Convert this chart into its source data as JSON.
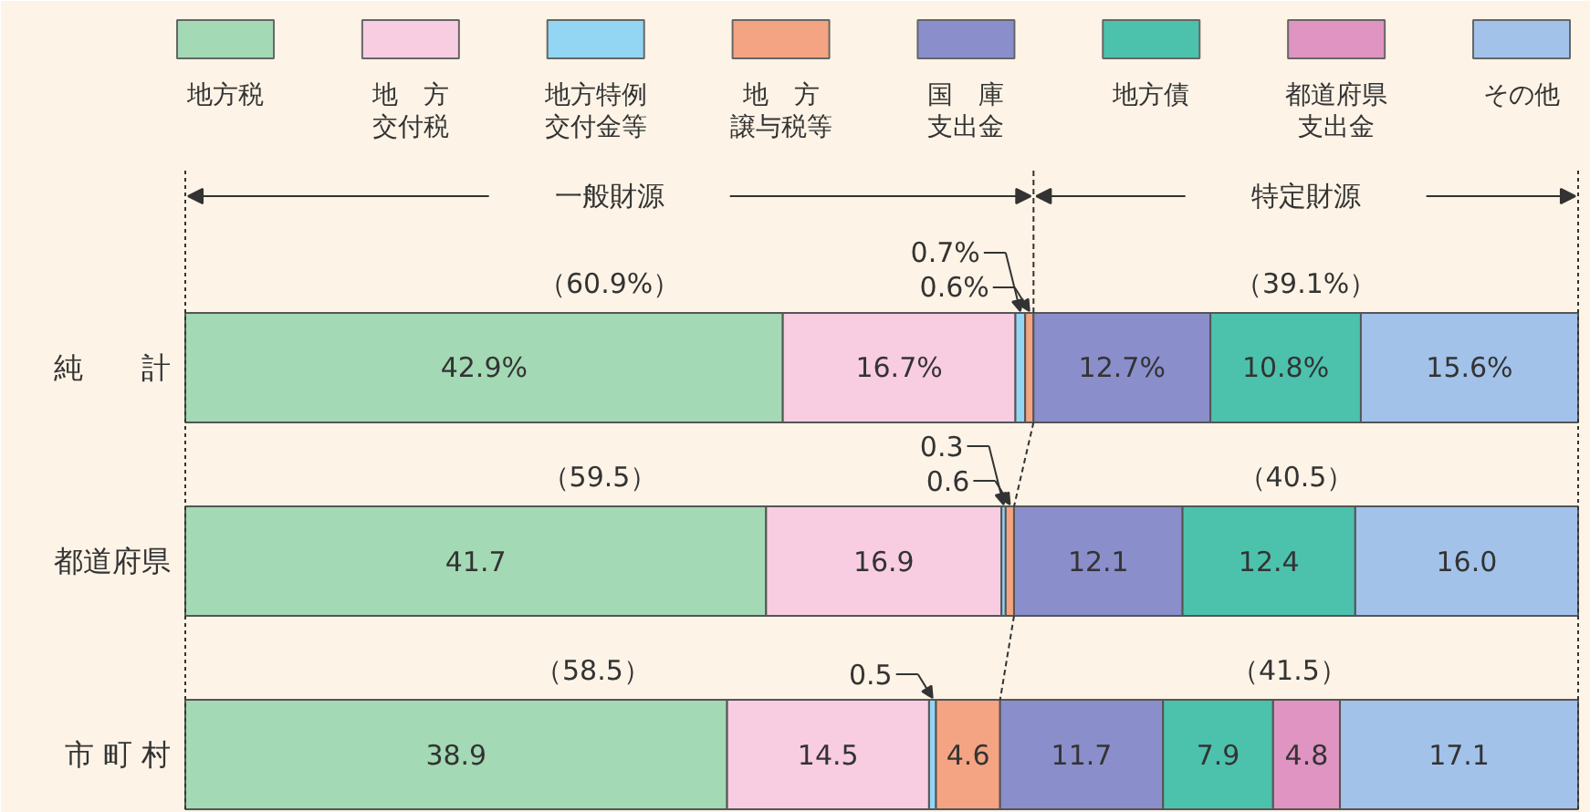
{
  "chart_data": {
    "type": "bar",
    "orientation": "horizontal",
    "stacked": true,
    "legend": "top",
    "categories": [
      "純　　計",
      "都道府県",
      "市 町 村"
    ],
    "series": [
      {
        "name": "地方税",
        "color": "#a3d9b4",
        "values": [
          42.9,
          41.7,
          38.9
        ],
        "value_labels": [
          "42.9%",
          "41.7",
          "38.9"
        ]
      },
      {
        "name": "地　方交付税",
        "color": "#f8cde1",
        "values": [
          16.7,
          16.9,
          14.5
        ],
        "value_labels": [
          "16.7%",
          "16.9",
          "14.5"
        ]
      },
      {
        "name": "地方特例交付金等",
        "color": "#92d6f4",
        "values": [
          0.7,
          0.3,
          0.5
        ],
        "value_labels": [
          "0.7%",
          "0.3",
          "0.5"
        ]
      },
      {
        "name": "地　方譲与税等",
        "color": "#f4a482",
        "values": [
          0.6,
          0.6,
          4.6
        ],
        "value_labels": [
          "0.6%",
          "0.6",
          "4.6"
        ]
      },
      {
        "name": "国　庫支出金",
        "color": "#8a8ecb",
        "values": [
          12.7,
          12.1,
          11.7
        ],
        "value_labels": [
          "12.7%",
          "12.1",
          "11.7"
        ]
      },
      {
        "name": "地方債",
        "color": "#4cc2ad",
        "values": [
          10.8,
          12.4,
          7.9
        ],
        "value_labels": [
          "10.8%",
          "12.4",
          "7.9"
        ]
      },
      {
        "name": "都道府県支出金",
        "color": "#e094c2",
        "values": [
          null,
          null,
          4.8
        ],
        "value_labels": [
          null,
          null,
          "4.8"
        ]
      },
      {
        "name": "その他",
        "color": "#a2c2ea",
        "values": [
          15.6,
          16.0,
          17.1
        ],
        "value_labels": [
          "15.6%",
          "16.0",
          "17.1"
        ]
      }
    ],
    "ref_lines": [
      {
        "axis": "x",
        "value": 0,
        "line_style": "dotted"
      },
      {
        "axis": "x",
        "value": 60.9,
        "line_style": "dashed"
      },
      {
        "axis": "x",
        "value": 100,
        "line_style": "dotted"
      }
    ],
    "annotations": [
      "一般財源",
      "特定財源",
      "（60.9%）",
      "（39.1%）",
      "（59.5）",
      "（40.5）",
      "（58.5）",
      "（41.5）"
    ]
  }
}
